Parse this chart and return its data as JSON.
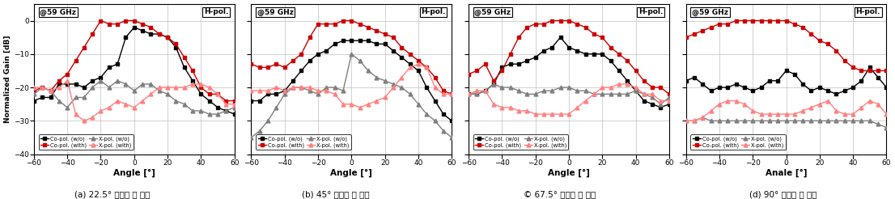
{
  "freq_label": "@59 GHz",
  "pol_label": "H-pol.",
  "xlabels": [
    "Angle [°]",
    "Angle [°]",
    "Angle [°]",
    "Anale [°]"
  ],
  "ylabel": "Normalized Gain [dB]",
  "xlim": [
    -60,
    60
  ],
  "ylim": [
    -40,
    5
  ],
  "yticks": [
    0,
    -10,
    -20,
    -30,
    -40
  ],
  "xticks": [
    -60,
    -40,
    -20,
    0,
    20,
    40,
    60
  ],
  "captions": [
    "(a) 22.5° 안테나 비 정렬",
    "(b) 45° 안테나 비 정렬",
    "© 67.5° 안테나 비 정렬",
    "(d) 90° 안테나 비 정렬"
  ],
  "angles": [
    -60,
    -55,
    -50,
    -45,
    -40,
    -35,
    -30,
    -25,
    -20,
    -15,
    -10,
    -5,
    0,
    5,
    10,
    15,
    20,
    25,
    30,
    35,
    40,
    45,
    50,
    55,
    60
  ],
  "panels": [
    {
      "co_wo": [
        -24,
        -23,
        -23,
        -19,
        -19,
        -19,
        -20,
        -18,
        -17,
        -14,
        -13,
        -5,
        -2,
        -3,
        -4,
        -4,
        -5,
        -8,
        -14,
        -18,
        -22,
        -24,
        -26,
        -27,
        -28
      ],
      "co_wt": [
        -21,
        -20,
        -21,
        -18,
        -16,
        -12,
        -8,
        -4,
        0,
        -1,
        -1,
        0,
        0,
        -1,
        -2,
        -4,
        -5,
        -7,
        -11,
        -15,
        -20,
        -22,
        -22,
        -24,
        -24
      ],
      "xp_wo": [
        -22,
        -20,
        -21,
        -24,
        -26,
        -23,
        -23,
        -20,
        -18,
        -20,
        -18,
        -19,
        -21,
        -19,
        -19,
        -21,
        -22,
        -24,
        -25,
        -27,
        -27,
        -28,
        -28,
        -27,
        -26
      ],
      "xp_wt": [
        -20,
        -20,
        -21,
        -20,
        -18,
        -28,
        -30,
        -29,
        -27,
        -26,
        -24,
        -25,
        -26,
        -24,
        -22,
        -20,
        -20,
        -20,
        -20,
        -19,
        -19,
        -20,
        -22,
        -25,
        -25
      ]
    },
    {
      "co_wo": [
        -24,
        -24,
        -22,
        -22,
        -21,
        -18,
        -15,
        -12,
        -10,
        -9,
        -7,
        -6,
        -6,
        -6,
        -6,
        -7,
        -7,
        -9,
        -11,
        -13,
        -15,
        -20,
        -24,
        -28,
        -30
      ],
      "co_wt": [
        -13,
        -14,
        -14,
        -13,
        -14,
        -12,
        -10,
        -5,
        -1,
        -1,
        -1,
        0,
        0,
        -1,
        -2,
        -3,
        -4,
        -5,
        -8,
        -10,
        -12,
        -14,
        -17,
        -21,
        -22
      ],
      "xp_wo": [
        -35,
        -33,
        -30,
        -26,
        -22,
        -20,
        -20,
        -21,
        -22,
        -20,
        -20,
        -21,
        -10,
        -12,
        -15,
        -17,
        -18,
        -19,
        -20,
        -22,
        -25,
        -28,
        -30,
        -33,
        -35
      ],
      "xp_wt": [
        -21,
        -21,
        -21,
        -20,
        -21,
        -20,
        -20,
        -20,
        -21,
        -21,
        -22,
        -25,
        -25,
        -26,
        -25,
        -24,
        -23,
        -20,
        -17,
        -14,
        -13,
        -14,
        -20,
        -22,
        -22
      ]
    },
    {
      "co_wo": [
        -22,
        -22,
        -21,
        -19,
        -14,
        -13,
        -13,
        -12,
        -11,
        -9,
        -8,
        -5,
        -8,
        -9,
        -10,
        -10,
        -10,
        -12,
        -15,
        -18,
        -21,
        -24,
        -25,
        -26,
        -25
      ],
      "co_wt": [
        -16,
        -15,
        -13,
        -18,
        -15,
        -10,
        -5,
        -2,
        -1,
        -1,
        0,
        0,
        0,
        -1,
        -2,
        -4,
        -5,
        -8,
        -10,
        -12,
        -15,
        -18,
        -20,
        -20,
        -22
      ],
      "xp_wo": [
        -22,
        -22,
        -21,
        -19,
        -20,
        -20,
        -21,
        -22,
        -22,
        -21,
        -21,
        -20,
        -20,
        -21,
        -21,
        -22,
        -22,
        -22,
        -22,
        -22,
        -21,
        -22,
        -23,
        -25,
        -23
      ],
      "xp_wt": [
        -22,
        -21,
        -21,
        -25,
        -26,
        -26,
        -27,
        -27,
        -28,
        -28,
        -28,
        -28,
        -28,
        -26,
        -24,
        -22,
        -20,
        -20,
        -19,
        -19,
        -20,
        -22,
        -22,
        -24,
        -24
      ]
    },
    {
      "co_wo": [
        -18,
        -17,
        -19,
        -21,
        -20,
        -20,
        -19,
        -20,
        -21,
        -20,
        -18,
        -18,
        -15,
        -16,
        -19,
        -21,
        -20,
        -21,
        -22,
        -21,
        -20,
        -18,
        -14,
        -17,
        -20
      ],
      "co_wt": [
        -5,
        -4,
        -3,
        -2,
        -1,
        -1,
        0,
        0,
        0,
        0,
        0,
        0,
        0,
        -1,
        -2,
        -4,
        -6,
        -7,
        -9,
        -12,
        -14,
        -15,
        -15,
        -15,
        -15
      ],
      "xp_wo": [
        -30,
        -30,
        -29,
        -30,
        -30,
        -30,
        -30,
        -30,
        -30,
        -30,
        -30,
        -30,
        -30,
        -30,
        -30,
        -30,
        -30,
        -30,
        -30,
        -30,
        -30,
        -30,
        -30,
        -31,
        -32
      ],
      "xp_wt": [
        -30,
        -30,
        -29,
        -27,
        -25,
        -24,
        -24,
        -25,
        -27,
        -28,
        -28,
        -28,
        -28,
        -28,
        -27,
        -26,
        -25,
        -24,
        -27,
        -28,
        -28,
        -26,
        -24,
        -25,
        -28
      ]
    }
  ],
  "colors": {
    "co_wo": "#000000",
    "co_wt": "#cc0000",
    "xp_wo": "#7f7f7f",
    "xp_wt": "#ff8080"
  },
  "lw": 1.0,
  "ms": 3.5
}
